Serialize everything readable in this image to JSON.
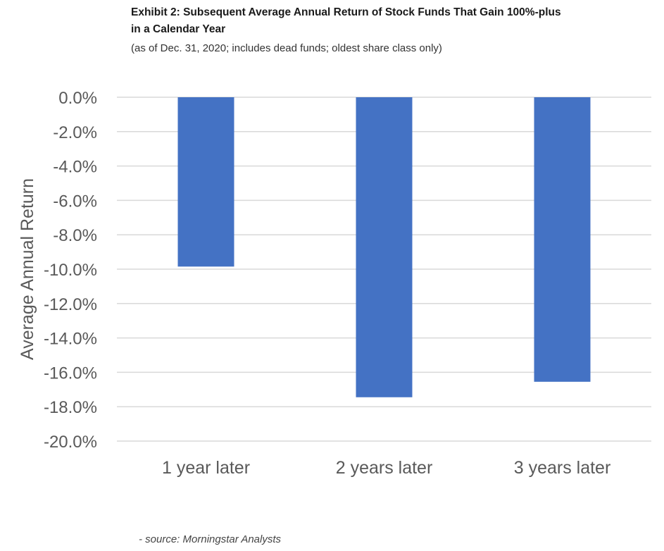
{
  "chart_data": {
    "type": "bar",
    "title": "Exhibit 2: Subsequent Average Annual Return of Stock Funds That Gain 100%-plus in a Calendar Year",
    "subtitle": "(as of Dec. 31, 2020; includes dead funds; oldest share class only)",
    "categories": [
      "1 year later",
      "2 years later",
      "3 years later"
    ],
    "values": [
      -9.85,
      -17.45,
      -16.55
    ],
    "ylabel": "Average Annual Return",
    "ylim": [
      -20,
      0
    ],
    "yticks": [
      0,
      -2,
      -4,
      -6,
      -8,
      -10,
      -12,
      -14,
      -16,
      -18,
      -20
    ],
    "ytick_labels": [
      "0.0%",
      "-2.0%",
      "-4.0%",
      "-6.0%",
      "-8.0%",
      "-10.0%",
      "-12.0%",
      "-14.0%",
      "-16.0%",
      "-18.0%",
      "-20.0%"
    ],
    "grid": true,
    "legend": "none",
    "bar_color": "#4472c4",
    "grid_color": "#d9d9d9"
  },
  "source": " - source: Morningstar Analysts"
}
